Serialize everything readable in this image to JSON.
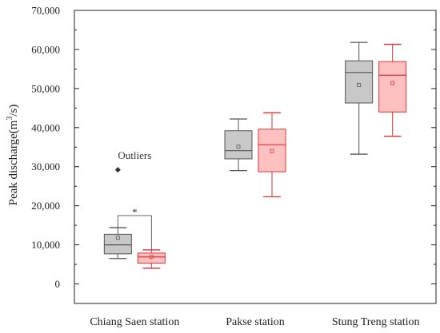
{
  "chart_data": {
    "type": "box",
    "ylabel": "Peak discharge(m³/s)",
    "ylabel_main": "Peak discharge(m",
    "ylabel_sup": "3",
    "ylabel_end": "/s)",
    "ylim": [
      -5000,
      70000
    ],
    "yticks": [
      0,
      10000,
      20000,
      30000,
      40000,
      50000,
      60000,
      70000
    ],
    "ytick_labels": [
      "0",
      "10,000",
      "20,000",
      "30,000",
      "40,000",
      "50,000",
      "60,000",
      "70,000"
    ],
    "categories": [
      "Chiang Saen station",
      "Pakse  station",
      "Stung Treng  station"
    ],
    "series": [
      {
        "color": "#555555",
        "fill": "#c8c8c8",
        "boxes": [
          {
            "min": 6500,
            "q1": 7700,
            "median": 10000,
            "q3": 12700,
            "max": 14400,
            "mean": 11800,
            "outliers": [
              29200
            ]
          },
          {
            "min": 29000,
            "q1": 32000,
            "median": 34100,
            "q3": 39200,
            "max": 42200,
            "mean": 35100,
            "outliers": []
          },
          {
            "min": 33200,
            "q1": 46300,
            "median": 54100,
            "q3": 57100,
            "max": 61800,
            "mean": 50900,
            "outliers": []
          }
        ]
      },
      {
        "color": "#e0333a",
        "fill": "#ffc0c0",
        "boxes": [
          {
            "min": 4000,
            "q1": 5300,
            "median": 6900,
            "q3": 7900,
            "max": 8700,
            "mean": 6900,
            "outliers": []
          },
          {
            "min": 22300,
            "q1": 28700,
            "median": 35600,
            "q3": 39600,
            "max": 43800,
            "mean": 34000,
            "outliers": []
          },
          {
            "min": 37800,
            "q1": 44000,
            "median": 53400,
            "q3": 56900,
            "max": 61300,
            "mean": 51400,
            "outliers": []
          }
        ]
      }
    ],
    "annotations": [
      {
        "text": "Outliers",
        "x_category": 0,
        "y": 33000
      },
      {
        "text": "*",
        "x_category": 0,
        "y": 18500
      }
    ],
    "significance_bracket": {
      "category": 0,
      "y": 17500
    }
  }
}
